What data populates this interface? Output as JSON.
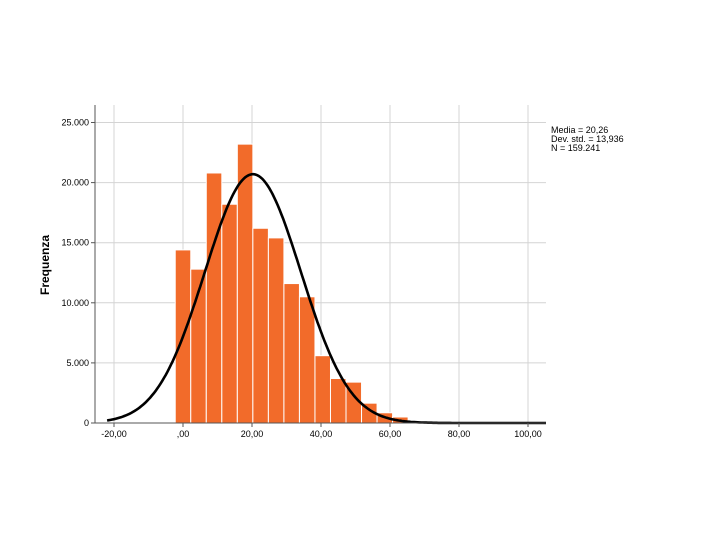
{
  "chart_data": {
    "type": "bar",
    "subtype": "histogram",
    "ylabel": "Frequenza",
    "xlabel": "",
    "xlim": [
      -22,
      106
    ],
    "ylim": [
      0,
      26000
    ],
    "x_ticks": [
      -20,
      0,
      20,
      40,
      60,
      80,
      100
    ],
    "x_tick_labels": [
      "-20,00",
      ",00",
      "20,00",
      "40,00",
      "60,00",
      "80,00",
      "100,00"
    ],
    "y_ticks": [
      0,
      5000,
      10000,
      15000,
      20000,
      25000
    ],
    "y_tick_labels": [
      "0",
      "5.000",
      "10.000",
      "15.000",
      "20.000",
      "25.000"
    ],
    "grid": true,
    "bar_color": "#f26b2a",
    "bar_edge_color": "#ffffff",
    "curve_color": "#000000",
    "bins": [
      {
        "from": -2.25,
        "to": 2.25,
        "value": 14400
      },
      {
        "from": 2.25,
        "to": 6.75,
        "value": 12800
      },
      {
        "from": 6.75,
        "to": 11.25,
        "value": 20800
      },
      {
        "from": 11.25,
        "to": 15.75,
        "value": 18200
      },
      {
        "from": 15.75,
        "to": 20.25,
        "value": 23200
      },
      {
        "from": 20.25,
        "to": 24.75,
        "value": 16200
      },
      {
        "from": 24.75,
        "to": 29.25,
        "value": 15400
      },
      {
        "from": 29.25,
        "to": 33.75,
        "value": 11600
      },
      {
        "from": 33.75,
        "to": 38.25,
        "value": 10500
      },
      {
        "from": 38.25,
        "to": 42.75,
        "value": 5600
      },
      {
        "from": 42.75,
        "to": 47.25,
        "value": 3700
      },
      {
        "from": 47.25,
        "to": 51.75,
        "value": 3400
      },
      {
        "from": 51.75,
        "to": 56.25,
        "value": 1650
      },
      {
        "from": 56.25,
        "to": 60.75,
        "value": 850
      },
      {
        "from": 60.75,
        "to": 65.25,
        "value": 500
      }
    ],
    "normal_curve": {
      "mean": 20.26,
      "std": 13.936,
      "peak": 20700
    },
    "stats": [
      "Media = 20,26",
      "Dev. std. = 13,936",
      "N = 159.241"
    ]
  }
}
